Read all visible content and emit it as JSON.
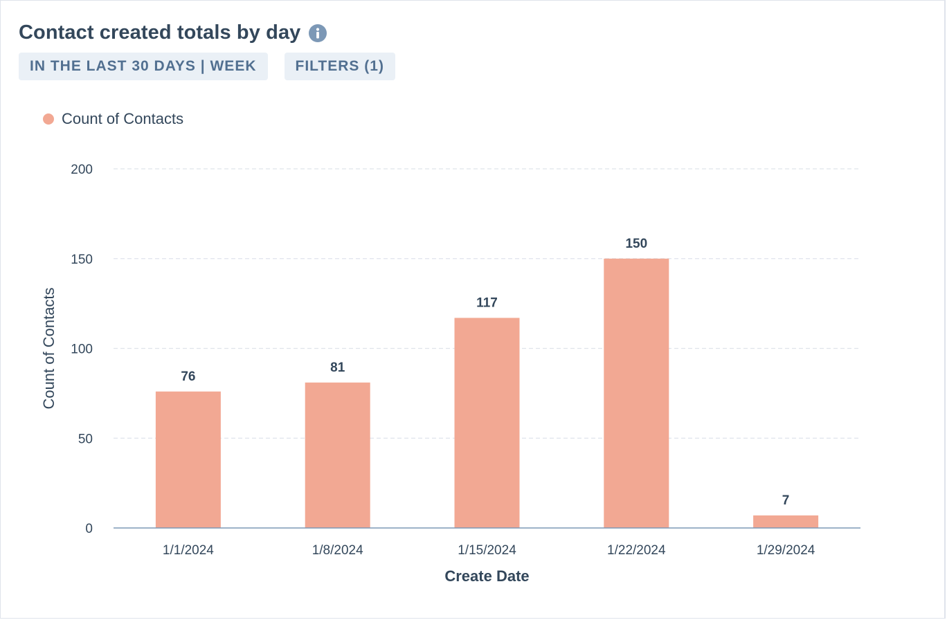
{
  "card": {
    "title": "Contact created totals by day",
    "info_icon": "info-icon",
    "date_range_tag": "IN THE LAST 30 DAYS | WEEK",
    "filters_tag": "FILTERS (1)"
  },
  "colors": {
    "bar": "#f2a893",
    "text": "#33475b",
    "tag_bg": "#eaf0f6",
    "tag_text": "#516f90",
    "grid": "#dfe3eb",
    "axis": "#7c98b6"
  },
  "chart_data": {
    "type": "bar",
    "title": "",
    "xlabel": "Create Date",
    "ylabel": "Count of Contacts",
    "categories": [
      "1/1/2024",
      "1/8/2024",
      "1/15/2024",
      "1/22/2024",
      "1/29/2024"
    ],
    "series": [
      {
        "name": "Count of Contacts",
        "values": [
          76,
          81,
          117,
          150,
          7
        ]
      }
    ],
    "ylim": [
      0,
      200
    ],
    "yticks": [
      0,
      50,
      100,
      150,
      200
    ],
    "grid": true,
    "legend_position": "top-left",
    "data_labels": true
  }
}
